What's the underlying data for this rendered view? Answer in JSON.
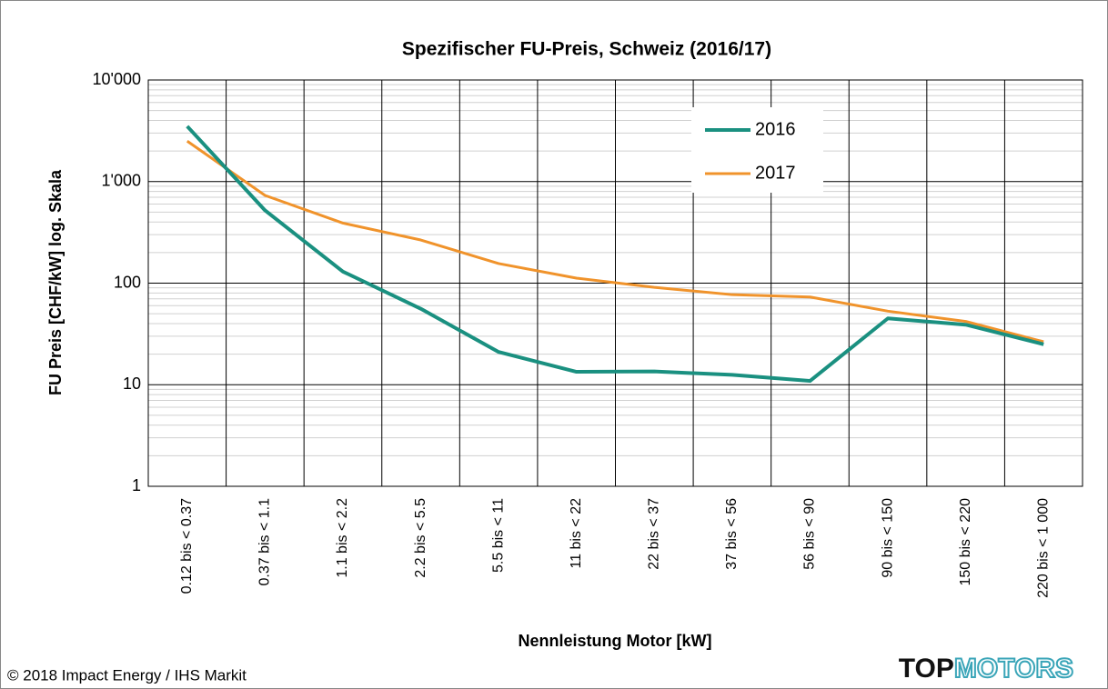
{
  "chart_data": {
    "type": "line",
    "title": "Spezifischer FU-Preis, Schweiz (2016/17)",
    "xlabel": "Nennleistung Motor [kW]",
    "ylabel": "FU Preis [CHF/kW] log. Skala",
    "categories": [
      "0.12 bis < 0.37",
      "0.37 bis < 1.1",
      "1.1 bis < 2.2",
      "2.2 bis < 5.5",
      "5.5 bis < 11",
      "11 bis < 22",
      "22 bis < 37",
      "37 bis < 56",
      "56 bis < 90",
      "90 bis < 150",
      "150 bis < 220",
      "220 bis < 1 000"
    ],
    "series": [
      {
        "name": "2016",
        "color": "#1a9080",
        "values": [
          3500,
          520,
          130,
          56,
          21,
          13.4,
          13.5,
          12.5,
          10.9,
          45,
          39,
          25
        ]
      },
      {
        "name": "2017",
        "color": "#f0932b",
        "values": [
          2500,
          730,
          390,
          266,
          156,
          112,
          91,
          77,
          73,
          53,
          42,
          26.5
        ]
      }
    ],
    "ylim": [
      1,
      10000
    ],
    "yticks": [
      1,
      10,
      100,
      {
        "value": 1000,
        "label": "1'000"
      },
      {
        "value": 10000,
        "label": "10'000"
      }
    ],
    "log_y": true,
    "grid": true,
    "legend": "upper right"
  },
  "footer": "© 2018 Impact Energy / IHS Markit",
  "logo": {
    "part1": "TOP",
    "part2": "MOTORS"
  }
}
